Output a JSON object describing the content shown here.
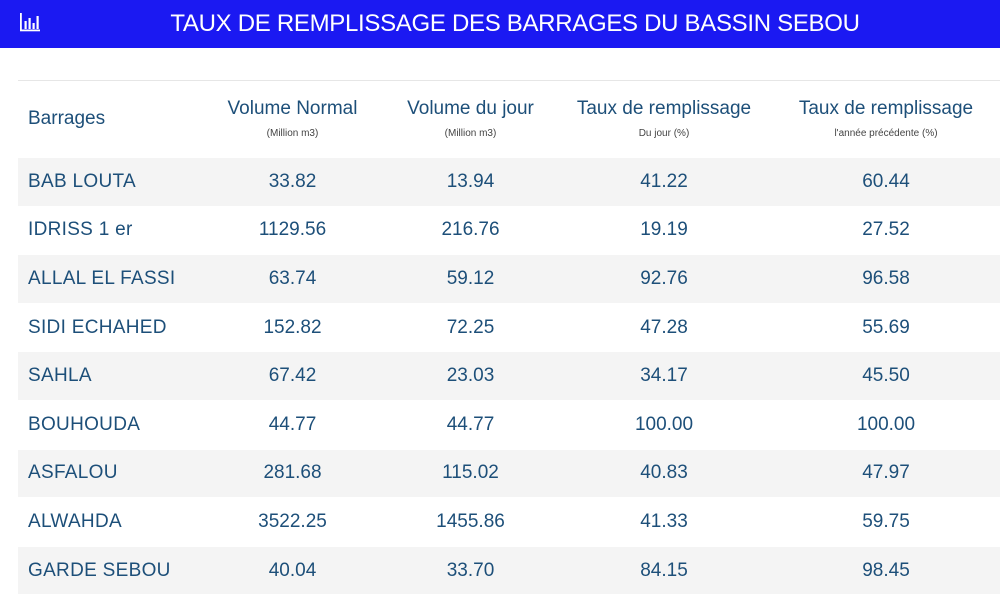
{
  "header": {
    "icon": "bar-chart-icon",
    "title": "TAUX DE REMPLISSAGE DES BARRAGES DU BASSIN SEBOU"
  },
  "table": {
    "columns": [
      {
        "label": "Barrages",
        "sub": ""
      },
      {
        "label": "Volume Normal",
        "sub": "(Million m3)"
      },
      {
        "label": "Volume du jour",
        "sub": "(Million m3)"
      },
      {
        "label": "Taux de remplissage",
        "sub": "Du jour (%)"
      },
      {
        "label": "Taux de remplissage",
        "sub": "l'année précédente (%)"
      }
    ],
    "rows": [
      [
        "BAB LOUTA",
        "33.82",
        "13.94",
        "41.22",
        "60.44"
      ],
      [
        "IDRISS 1 er",
        "1129.56",
        "216.76",
        "19.19",
        "27.52"
      ],
      [
        "ALLAL EL FASSI",
        "63.74",
        "59.12",
        "92.76",
        "96.58"
      ],
      [
        "SIDI ECHAHED",
        "152.82",
        "72.25",
        "47.28",
        "55.69"
      ],
      [
        "SAHLA",
        "67.42",
        "23.03",
        "34.17",
        "45.50"
      ],
      [
        "BOUHOUDA",
        "44.77",
        "44.77",
        "100.00",
        "100.00"
      ],
      [
        "ASFALOU",
        "281.68",
        "115.02",
        "40.83",
        "47.97"
      ],
      [
        "ALWAHDA",
        "3522.25",
        "1455.86",
        "41.33",
        "59.75"
      ],
      [
        "GARDE SEBOU",
        "40.04",
        "33.70",
        "84.15",
        "98.45"
      ]
    ]
  },
  "colors": {
    "header_bg": "#1b19f2",
    "text": "#1d4f79",
    "stripe": "#f4f4f4"
  }
}
